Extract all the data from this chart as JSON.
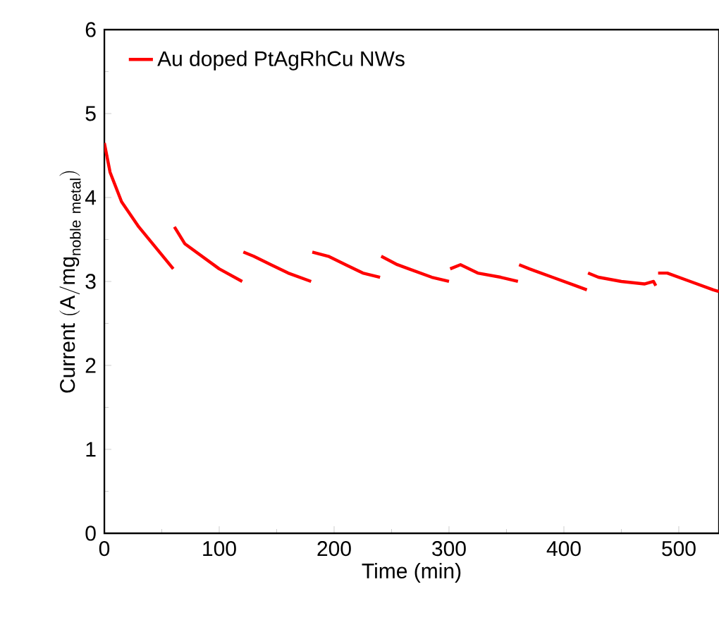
{
  "chart_data": {
    "type": "line",
    "xlabel": "Time (min)",
    "ylabel": "\\mathrm{Current\\ (A/mg}_{\\mathrm{noble\\ metal}}\\mathrm{)}",
    "xlim": [
      0,
      535
    ],
    "ylim": [
      0,
      6
    ],
    "xticks": [
      0,
      100,
      200,
      300,
      400,
      500
    ],
    "yticks": [
      0,
      1,
      2,
      3,
      4,
      5,
      6
    ],
    "legend": "top left",
    "grid": false,
    "marker": "none",
    "line_style": "solid",
    "x": [
      0,
      5,
      15,
      30,
      45,
      60,
      60.5,
      61,
      70,
      85,
      100,
      120,
      120.5,
      121,
      130,
      145,
      160,
      180,
      180.5,
      181,
      195,
      210,
      225,
      240,
      240.5,
      241,
      255,
      265,
      285,
      300,
      300.5,
      301,
      310,
      325,
      345,
      360,
      360.5,
      361,
      370,
      390,
      410,
      420,
      420.5,
      421,
      430,
      450,
      470,
      478,
      480,
      481,
      482,
      490,
      510,
      530,
      535
    ],
    "series": [
      {
        "name": "Au doped PtAgRhCu NWs",
        "color": "#ff0000",
        "values": [
          4.65,
          4.3,
          3.95,
          3.65,
          3.4,
          3.15,
          null,
          3.65,
          3.45,
          3.3,
          3.15,
          3.0,
          null,
          3.35,
          3.3,
          3.2,
          3.1,
          3.0,
          null,
          3.35,
          3.3,
          3.2,
          3.1,
          3.05,
          null,
          3.3,
          3.2,
          3.15,
          3.05,
          3.0,
          null,
          3.15,
          3.2,
          3.1,
          3.05,
          3.0,
          null,
          3.2,
          3.15,
          3.05,
          2.95,
          2.9,
          null,
          3.1,
          3.05,
          3.0,
          2.97,
          3.0,
          2.95,
          null,
          3.1,
          3.1,
          3.0,
          2.9,
          2.88
        ]
      }
    ]
  }
}
